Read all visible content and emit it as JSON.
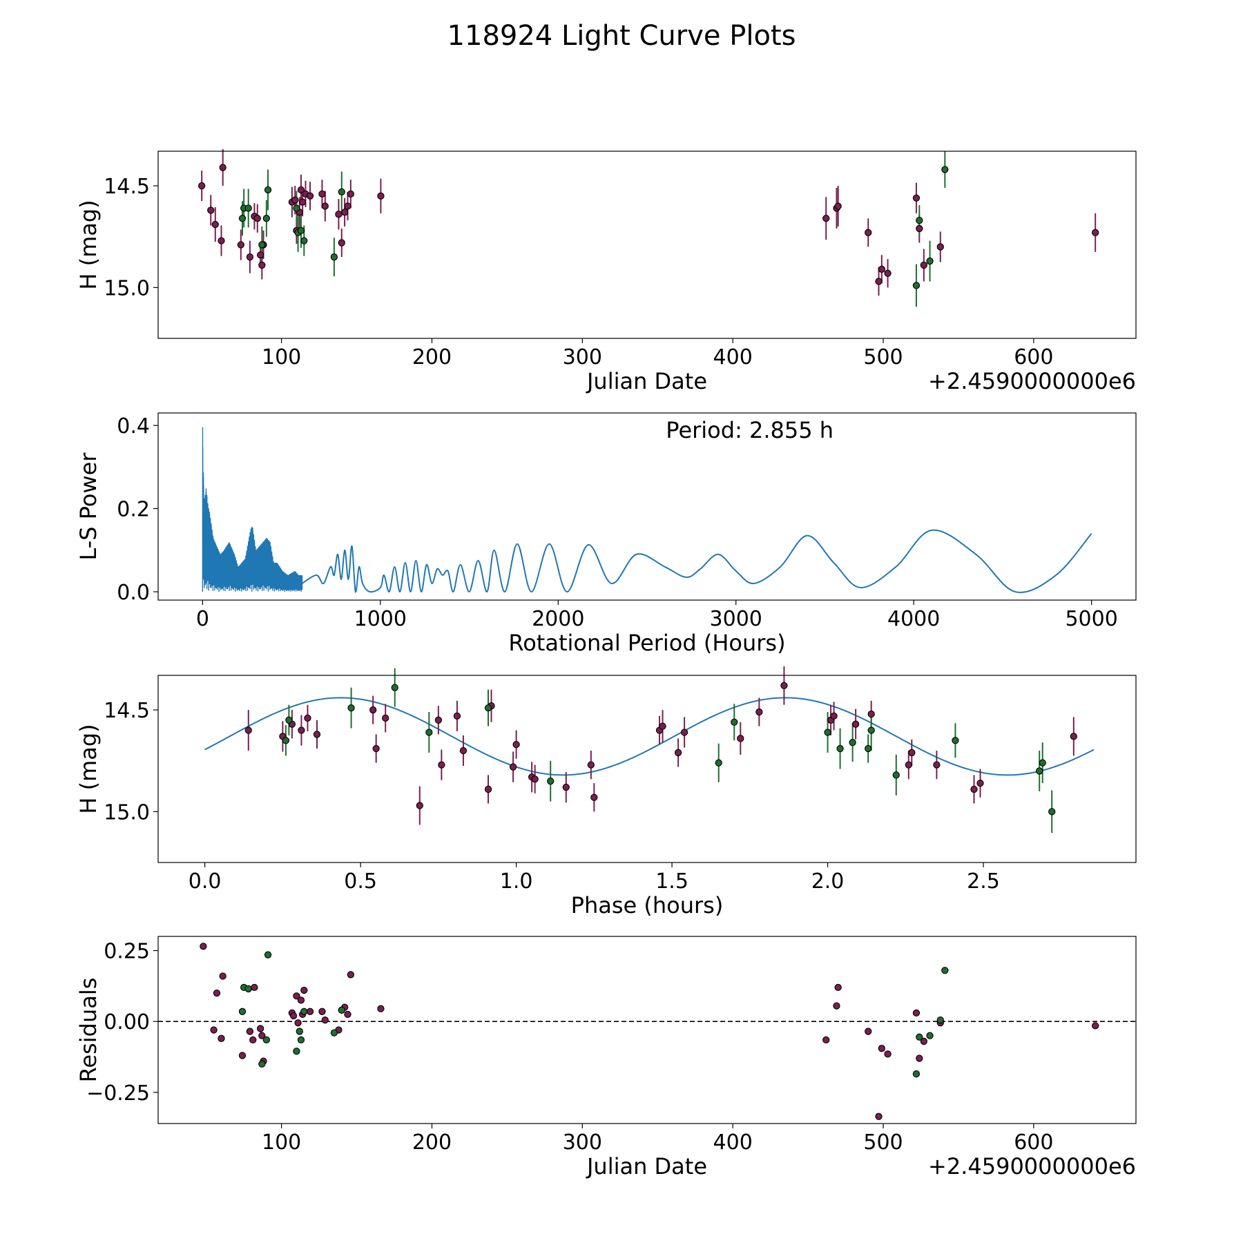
{
  "figure": {
    "title": "118924 Light Curve Plots"
  },
  "colors": {
    "band_a": "#7a1f4f",
    "band_b": "#1e6e2e",
    "curve": "#1f77b4",
    "zero_line": "#000000"
  },
  "chart_data": [
    {
      "id": "lightcurve",
      "type": "scatter",
      "xlabel": "Julian Date",
      "ylabel": "H (mag)",
      "offset_text": "+2.4590000000e6",
      "xlim": [
        18,
        668
      ],
      "ylim": [
        14.33,
        15.25
      ],
      "y_inverted": true,
      "xticks": [
        100,
        200,
        300,
        400,
        500,
        600
      ],
      "yticks": [
        14.5,
        15.0
      ],
      "xtick_labels": [
        "100",
        "200",
        "300",
        "400",
        "500",
        "600"
      ],
      "ytick_labels": [
        "14.5",
        "15.0"
      ],
      "error_bars": true,
      "series": [
        {
          "name": "band_a",
          "color": "#7a1f4f",
          "x": [
            47,
            53,
            56,
            60,
            61,
            73,
            79,
            82,
            84,
            86,
            87,
            88,
            107,
            109,
            110,
            112,
            113,
            114,
            116,
            119,
            127,
            129,
            138,
            140,
            142,
            144,
            146,
            166,
            462,
            469,
            470,
            490,
            497,
            499,
            503,
            522,
            524,
            527,
            538,
            641
          ],
          "y": [
            14.5,
            14.62,
            14.69,
            14.77,
            14.41,
            14.79,
            14.85,
            14.65,
            14.66,
            14.84,
            14.89,
            14.79,
            14.58,
            14.57,
            14.72,
            14.63,
            14.52,
            14.58,
            14.54,
            14.55,
            14.54,
            14.6,
            14.64,
            14.78,
            14.63,
            14.6,
            14.54,
            14.55,
            14.66,
            14.61,
            14.6,
            14.73,
            14.97,
            14.91,
            14.93,
            14.56,
            14.71,
            14.89,
            14.8,
            14.73
          ],
          "err": [
            0.15,
            0.15,
            0.17,
            0.15,
            0.18,
            0.15,
            0.16,
            0.13,
            0.14,
            0.13,
            0.14,
            0.14,
            0.15,
            0.14,
            0.13,
            0.15,
            0.15,
            0.14,
            0.13,
            0.14,
            0.14,
            0.15,
            0.15,
            0.14,
            0.14,
            0.14,
            0.14,
            0.17,
            0.21,
            0.2,
            0.2,
            0.14,
            0.14,
            0.14,
            0.14,
            0.15,
            0.14,
            0.16,
            0.15,
            0.19
          ]
        },
        {
          "name": "band_b",
          "color": "#1e6e2e",
          "x": [
            74,
            75,
            78,
            87,
            90,
            91,
            110,
            111,
            113,
            115,
            135,
            140,
            522,
            524,
            531,
            541
          ],
          "y": [
            14.66,
            14.61,
            14.61,
            14.79,
            14.66,
            14.52,
            14.61,
            14.73,
            14.72,
            14.77,
            14.85,
            14.53,
            14.99,
            14.67,
            14.87,
            14.42
          ],
          "err": [
            0.17,
            0.19,
            0.19,
            0.18,
            0.18,
            0.2,
            0.17,
            0.19,
            0.17,
            0.15,
            0.19,
            0.2,
            0.21,
            0.15,
            0.2,
            0.18
          ]
        }
      ]
    },
    {
      "id": "periodogram",
      "type": "line",
      "xlabel": "Rotational Period (Hours)",
      "ylabel": "L-S Power",
      "annotation": "Period: 2.855 h",
      "xlim": [
        -250,
        5250
      ],
      "ylim": [
        -0.02,
        0.43
      ],
      "xticks": [
        0,
        1000,
        2000,
        3000,
        4000,
        5000
      ],
      "yticks": [
        0.0,
        0.2,
        0.4
      ],
      "xtick_labels": [
        "0",
        "1000",
        "2000",
        "3000",
        "4000",
        "5000"
      ],
      "ytick_labels": [
        "0.0",
        "0.2",
        "0.4"
      ],
      "dense_region_max_period": 560,
      "series": [
        {
          "name": "L-S Power",
          "color": "#1f77b4",
          "x": [
            560,
            640,
            680,
            720,
            740,
            760,
            780,
            800,
            820,
            840,
            860,
            880,
            900,
            940,
            1000,
            1020,
            1050,
            1080,
            1110,
            1140,
            1170,
            1200,
            1230,
            1260,
            1290,
            1320,
            1350,
            1380,
            1410,
            1450,
            1500,
            1550,
            1600,
            1640,
            1700,
            1770,
            1850,
            1950,
            2050,
            2170,
            2300,
            2440,
            2600,
            2720,
            2800,
            2900,
            3000,
            3100,
            3250,
            3400,
            3550,
            3700,
            3900,
            4100,
            4350,
            4570,
            4800,
            5000
          ],
          "y": [
            0.02,
            0.04,
            0.02,
            0.06,
            0.04,
            0.09,
            0.03,
            0.1,
            0.03,
            0.11,
            0.0,
            0.06,
            0.02,
            0.0,
            0.01,
            0.04,
            0.0,
            0.06,
            0.0,
            0.07,
            0.0,
            0.075,
            0.0,
            0.065,
            0.02,
            0.055,
            0.04,
            0.05,
            0.0,
            0.065,
            0.0,
            0.075,
            0.0,
            0.1,
            0.0,
            0.115,
            0.0,
            0.115,
            0.0,
            0.113,
            0.02,
            0.09,
            0.06,
            0.035,
            0.055,
            0.09,
            0.05,
            0.02,
            0.06,
            0.135,
            0.07,
            0.01,
            0.06,
            0.148,
            0.09,
            0.0,
            0.04,
            0.14
          ]
        }
      ],
      "dense_series": {
        "x": [
          0,
          5,
          10,
          20,
          30,
          40,
          50,
          60,
          80,
          100,
          120,
          150,
          180,
          200,
          240,
          270,
          280,
          290,
          300,
          340,
          360,
          380,
          400,
          420,
          450,
          480,
          520,
          540,
          560
        ],
        "peak": [
          0.41,
          0.27,
          0.22,
          0.25,
          0.21,
          0.19,
          0.16,
          0.13,
          0.11,
          0.09,
          0.1,
          0.12,
          0.09,
          0.06,
          0.08,
          0.15,
          0.16,
          0.13,
          0.1,
          0.12,
          0.13,
          0.12,
          0.07,
          0.07,
          0.05,
          0.04,
          0.05,
          0.04,
          0.04
        ]
      }
    },
    {
      "id": "phased",
      "type": "scatter",
      "xlabel": "Phase (hours)",
      "ylabel": "H (mag)",
      "xlim": [
        -0.15,
        2.99
      ],
      "ylim": [
        14.33,
        15.25
      ],
      "y_inverted": true,
      "xticks": [
        0.0,
        0.5,
        1.0,
        1.5,
        2.0,
        2.5
      ],
      "yticks": [
        14.5,
        15.0
      ],
      "xtick_labels": [
        "0.0",
        "0.5",
        "1.0",
        "1.5",
        "2.0",
        "2.5"
      ],
      "ytick_labels": [
        "14.5",
        "15.0"
      ],
      "error_bars": true,
      "fit": {
        "period": 2.855,
        "mean": 14.63,
        "amplitude": 0.19,
        "peak_phase": 1.15,
        "x_end": 2.855,
        "color": "#1f77b4"
      },
      "series": [
        {
          "name": "band_a",
          "color": "#7a1f4f",
          "x": [
            0.14,
            0.25,
            0.28,
            0.31,
            0.33,
            0.36,
            0.54,
            0.55,
            0.58,
            0.69,
            0.75,
            0.76,
            0.81,
            0.83,
            0.91,
            0.92,
            0.99,
            1.0,
            1.05,
            1.06,
            1.16,
            1.24,
            1.25,
            1.46,
            1.47,
            1.52,
            1.54,
            1.72,
            1.78,
            1.86,
            2.01,
            2.02,
            2.09,
            2.14,
            2.26,
            2.27,
            2.35,
            2.47,
            2.49,
            2.79
          ],
          "y": [
            14.6,
            14.63,
            14.57,
            14.6,
            14.54,
            14.62,
            14.5,
            14.69,
            14.54,
            14.97,
            14.55,
            14.77,
            14.53,
            14.7,
            14.89,
            14.48,
            14.78,
            14.67,
            14.83,
            14.84,
            14.88,
            14.77,
            14.93,
            14.6,
            14.58,
            14.71,
            14.61,
            14.64,
            14.51,
            14.38,
            14.55,
            14.53,
            14.57,
            14.52,
            14.77,
            14.71,
            14.77,
            14.89,
            14.86,
            14.63
          ],
          "err": [
            0.2,
            0.15,
            0.14,
            0.15,
            0.13,
            0.14,
            0.14,
            0.14,
            0.14,
            0.19,
            0.14,
            0.15,
            0.15,
            0.15,
            0.14,
            0.16,
            0.15,
            0.14,
            0.15,
            0.14,
            0.15,
            0.14,
            0.14,
            0.14,
            0.16,
            0.14,
            0.15,
            0.16,
            0.14,
            0.19,
            0.15,
            0.14,
            0.15,
            0.13,
            0.14,
            0.13,
            0.14,
            0.14,
            0.14,
            0.19
          ]
        },
        {
          "name": "band_b",
          "color": "#1e6e2e",
          "x": [
            0.26,
            0.27,
            0.47,
            0.61,
            0.72,
            0.91,
            1.11,
            1.65,
            1.7,
            2.0,
            2.04,
            2.08,
            2.13,
            2.14,
            2.22,
            2.41,
            2.68,
            2.69,
            2.72
          ],
          "y": [
            14.65,
            14.55,
            14.49,
            14.39,
            14.61,
            14.49,
            14.85,
            14.76,
            14.56,
            14.61,
            14.69,
            14.66,
            14.69,
            14.6,
            14.82,
            14.65,
            14.8,
            14.76,
            15.0
          ],
          "err": [
            0.15,
            0.15,
            0.2,
            0.19,
            0.2,
            0.18,
            0.2,
            0.19,
            0.18,
            0.2,
            0.2,
            0.19,
            0.14,
            0.2,
            0.2,
            0.17,
            0.2,
            0.2,
            0.21
          ]
        }
      ]
    },
    {
      "id": "residuals",
      "type": "scatter",
      "xlabel": "Julian Date",
      "ylabel": "Residuals",
      "offset_text": "+2.4590000000e6",
      "xlim": [
        18,
        668
      ],
      "ylim": [
        -0.36,
        0.3
      ],
      "xticks": [
        100,
        200,
        300,
        400,
        500,
        600
      ],
      "yticks": [
        -0.25,
        0.0,
        0.25
      ],
      "xtick_labels": [
        "100",
        "200",
        "300",
        "400",
        "500",
        "600"
      ],
      "ytick_labels": [
        "−0.25",
        "0.00",
        "0.25"
      ],
      "zero_line": 0.0,
      "series": [
        {
          "name": "band_a",
          "color": "#7a1f4f",
          "x": [
            48,
            55,
            57,
            60,
            61,
            74,
            79,
            81,
            82,
            86,
            87,
            88,
            107,
            108,
            110,
            111,
            113,
            114,
            115,
            119,
            127,
            129,
            138,
            140,
            142,
            144,
            146,
            166,
            462,
            469,
            470,
            490,
            497,
            499,
            503,
            522,
            524,
            527,
            538,
            641
          ],
          "y": [
            0.265,
            -0.03,
            0.1,
            -0.06,
            0.16,
            -0.12,
            -0.035,
            -0.065,
            0.12,
            -0.025,
            -0.05,
            -0.14,
            0.03,
            0.02,
            0.09,
            -0.005,
            0.075,
            0.025,
            0.11,
            0.035,
            0.035,
            0.005,
            -0.03,
            0.04,
            0.05,
            0.025,
            0.165,
            0.045,
            -0.065,
            0.055,
            0.12,
            -0.035,
            -0.335,
            -0.095,
            -0.115,
            0.03,
            -0.13,
            -0.07,
            -0.005,
            -0.015
          ],
          "err": []
        },
        {
          "name": "band_b",
          "color": "#1e6e2e",
          "x": [
            74,
            75,
            78,
            87,
            90,
            91,
            110,
            112,
            113,
            115,
            135,
            140,
            522,
            524,
            531,
            538,
            541
          ],
          "y": [
            0.035,
            0.12,
            0.115,
            -0.15,
            -0.065,
            0.235,
            -0.105,
            -0.035,
            -0.065,
            0.035,
            -0.04,
            0.04,
            -0.185,
            -0.055,
            -0.05,
            0.005,
            0.18
          ],
          "err": []
        }
      ]
    }
  ]
}
